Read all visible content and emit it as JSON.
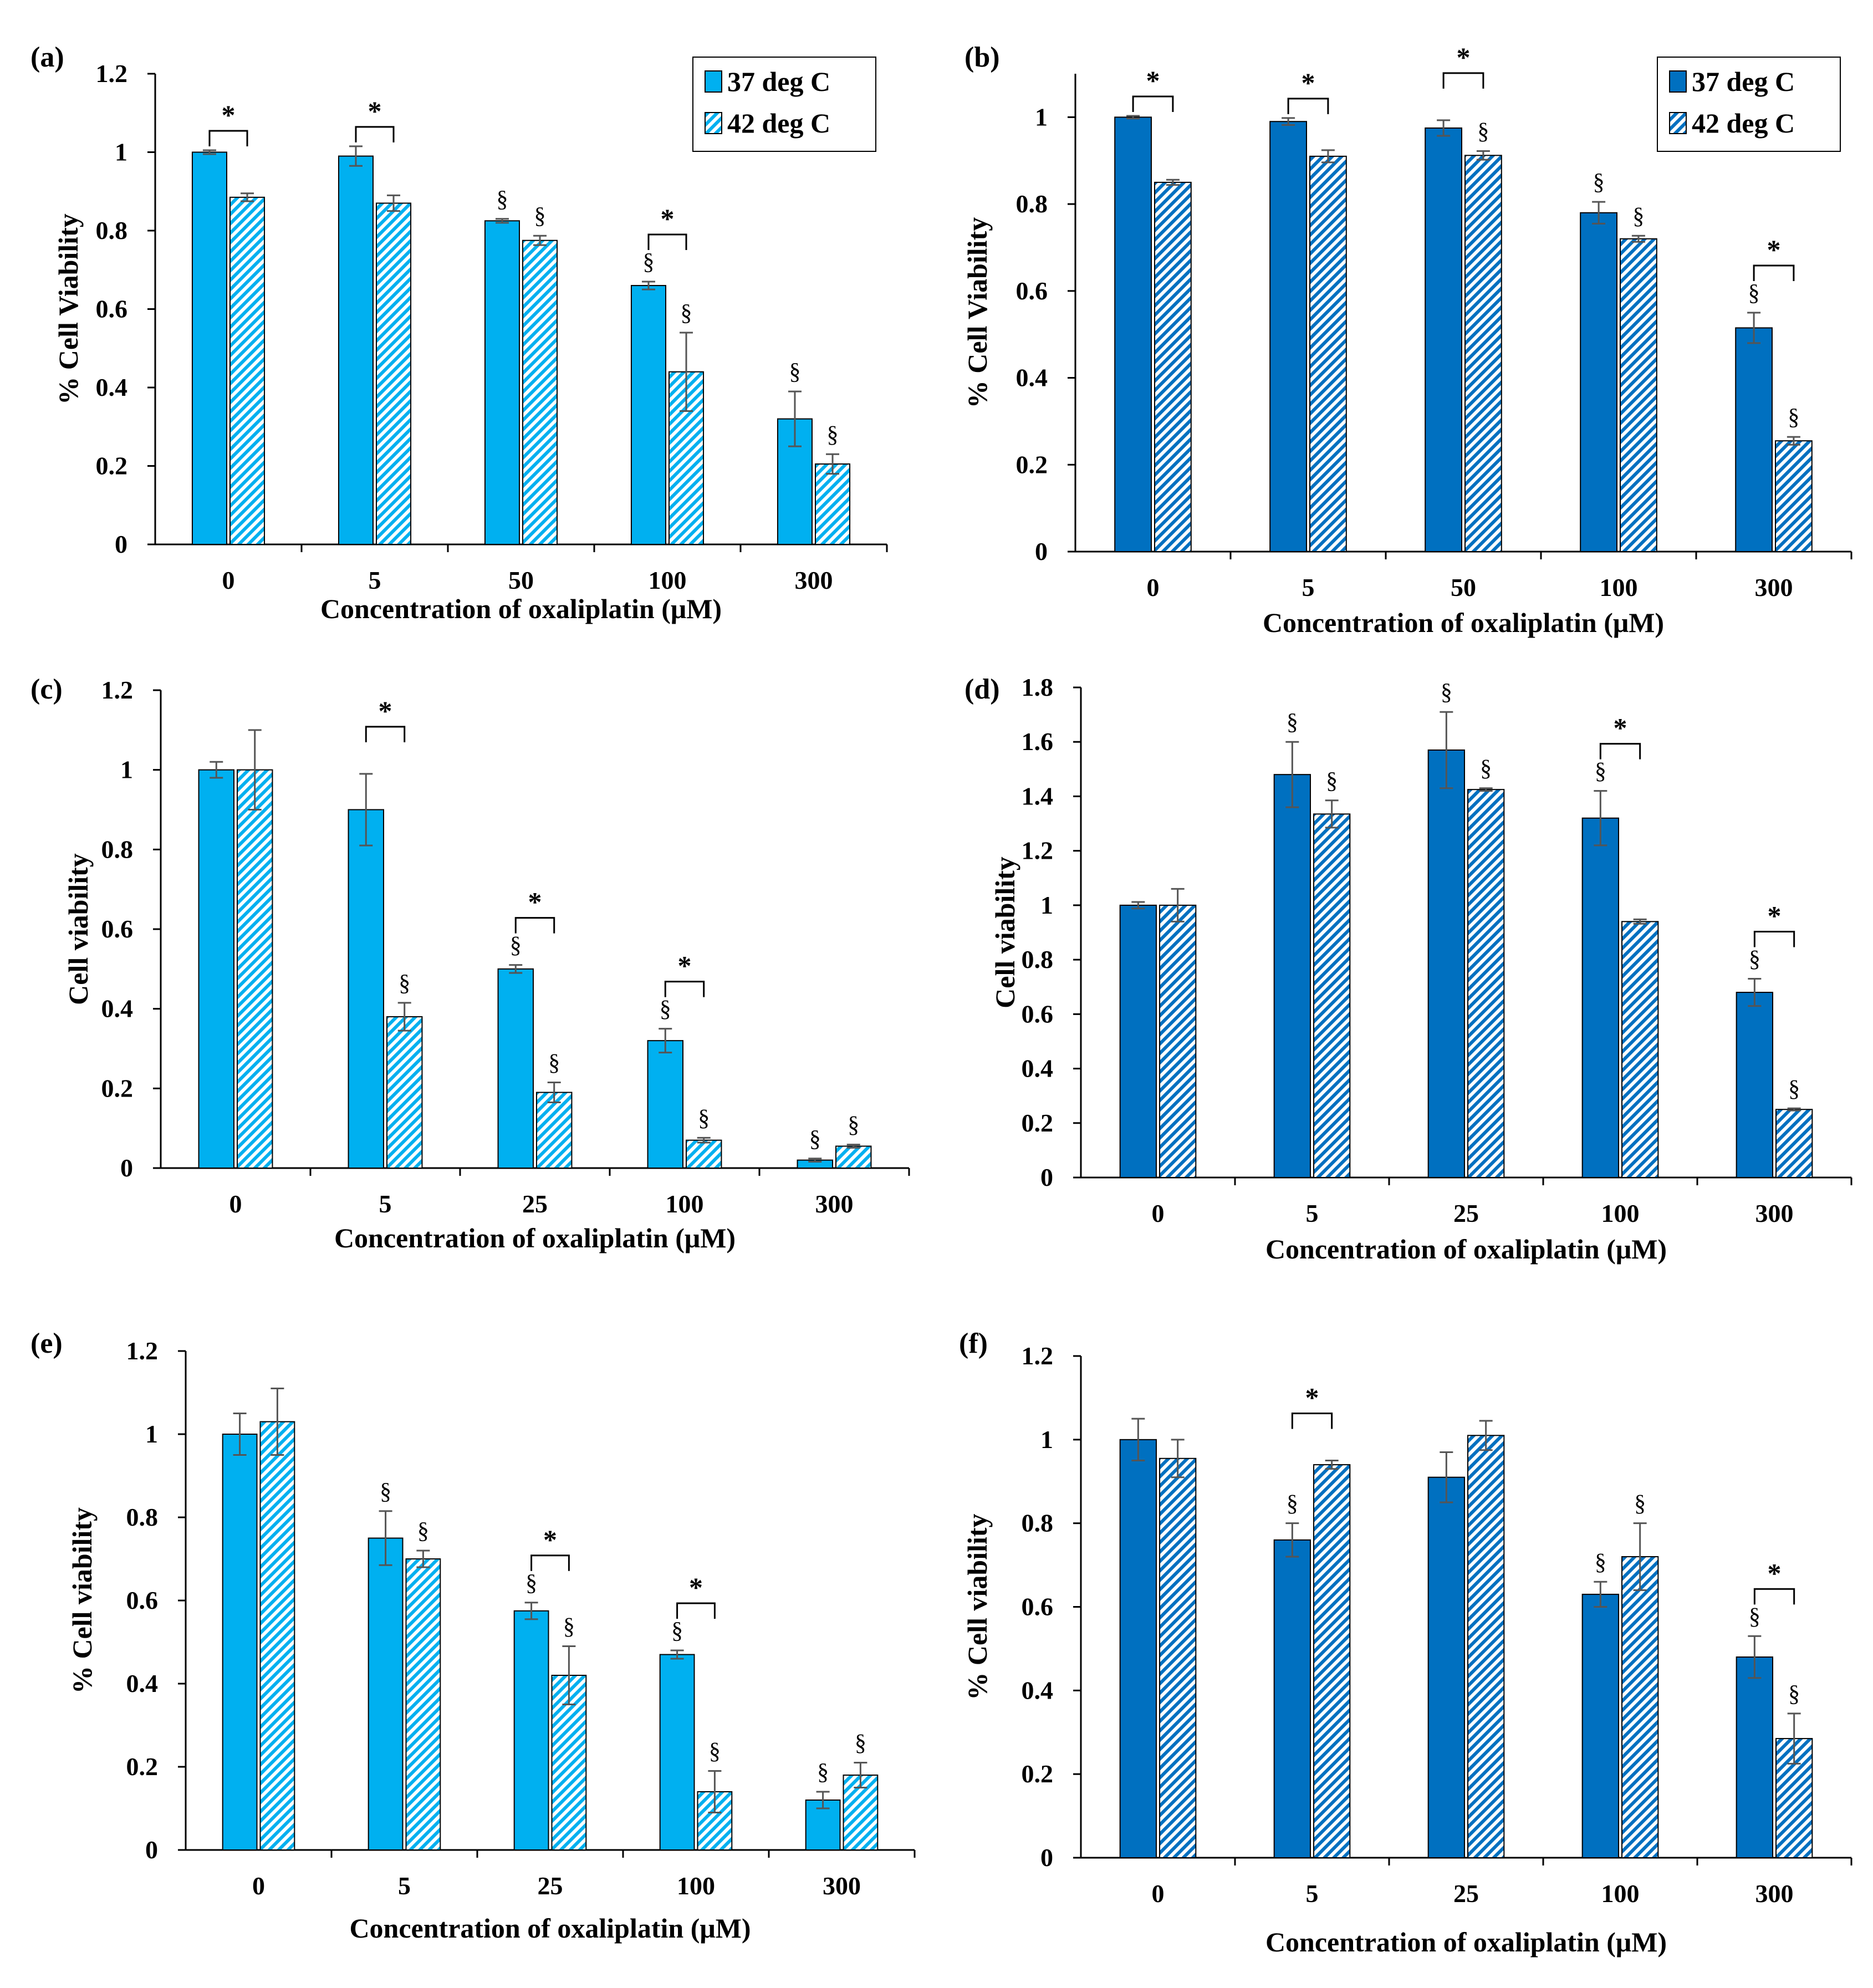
{
  "colors": {
    "light_blue": "#00b0f0",
    "dark_blue": "#0070c0",
    "axis": "#000000",
    "error_bar": "#555555"
  },
  "chart_data": [
    {
      "type": "bar",
      "panel_label": "(a)",
      "xlabel": "Concentration of oxaliplatin (μM)",
      "ylabel": "% Cell Viability",
      "ylim": [
        0,
        1.2
      ],
      "yticks": [
        0,
        0.2,
        0.4,
        0.6,
        0.8,
        1,
        1.2
      ],
      "ytick_labels": [
        "0",
        "0.2",
        "0.4",
        "0.6",
        "0.8",
        "1",
        "1.2"
      ],
      "categories": [
        "0",
        "5",
        "50",
        "100",
        "300"
      ],
      "color": "#00b0f0",
      "legend": {
        "placement": "top-right",
        "entries": [
          "37 deg C",
          "42 deg C"
        ]
      },
      "series": [
        {
          "name": "37 deg C",
          "pattern": "solid",
          "values": [
            1.0,
            0.99,
            0.825,
            0.66,
            0.32
          ],
          "errors": [
            0.005,
            0.025,
            0.005,
            0.01,
            0.07
          ],
          "markers": [
            "",
            "",
            "§",
            "§",
            "§"
          ]
        },
        {
          "name": "42 deg C",
          "pattern": "hatched",
          "values": [
            0.885,
            0.87,
            0.775,
            0.44,
            0.205
          ],
          "errors": [
            0.01,
            0.02,
            0.012,
            0.1,
            0.025
          ],
          "markers": [
            "",
            "",
            "§",
            "§",
            "§"
          ]
        }
      ],
      "significance": [
        {
          "category": "0",
          "label": "*"
        },
        {
          "category": "5",
          "label": "*"
        },
        {
          "category": "100",
          "label": "*"
        }
      ]
    },
    {
      "type": "bar",
      "panel_label": "(b)",
      "xlabel": "Concentration of oxaliplatin (μM)",
      "ylabel": "% Cell Viability",
      "ylim": [
        0,
        1.1
      ],
      "yticks": [
        0,
        0.2,
        0.4,
        0.6,
        0.8,
        1
      ],
      "ytick_labels": [
        "0",
        "0.2",
        "0.4",
        "0.6",
        "0.8",
        "1"
      ],
      "categories": [
        "0",
        "5",
        "50",
        "100",
        "300"
      ],
      "color": "#0070c0",
      "legend": {
        "placement": "top-right",
        "entries": [
          "37 deg C",
          "42 deg C"
        ]
      },
      "series": [
        {
          "name": "37 deg C",
          "pattern": "solid",
          "values": [
            1.0,
            0.99,
            0.975,
            0.78,
            0.515
          ],
          "errors": [
            0.003,
            0.008,
            0.018,
            0.025,
            0.035
          ],
          "markers": [
            "",
            "",
            "",
            "§",
            "§"
          ]
        },
        {
          "name": "42 deg C",
          "pattern": "hatched",
          "values": [
            0.85,
            0.91,
            0.912,
            0.72,
            0.255
          ],
          "errors": [
            0.006,
            0.014,
            0.01,
            0.007,
            0.009
          ],
          "markers": [
            "",
            "",
            "§",
            "§",
            "§"
          ]
        }
      ],
      "significance": [
        {
          "category": "0",
          "label": "*"
        },
        {
          "category": "5",
          "label": "*"
        },
        {
          "category": "50",
          "label": "*"
        },
        {
          "category": "300",
          "label": "*"
        }
      ]
    },
    {
      "type": "bar",
      "panel_label": "(c)",
      "xlabel": "Concentration of oxaliplatin (μM)",
      "ylabel": "Cell viability",
      "ylim": [
        0,
        1.2
      ],
      "yticks": [
        0,
        0.2,
        0.4,
        0.6,
        0.8,
        1,
        1.2
      ],
      "ytick_labels": [
        "0",
        "0.2",
        "0.4",
        "0.6",
        "0.8",
        "1",
        "1.2"
      ],
      "categories": [
        "0",
        "5",
        "25",
        "100",
        "300"
      ],
      "color": "#00b0f0",
      "legend": null,
      "series": [
        {
          "name": "37 deg C",
          "pattern": "solid",
          "values": [
            1.0,
            0.9,
            0.5,
            0.32,
            0.02
          ],
          "errors": [
            0.02,
            0.09,
            0.01,
            0.03,
            0.004
          ],
          "markers": [
            "",
            "",
            "§",
            "§",
            "§"
          ]
        },
        {
          "name": "42 deg C",
          "pattern": "hatched",
          "values": [
            1.0,
            0.38,
            0.19,
            0.07,
            0.055
          ],
          "errors": [
            0.1,
            0.035,
            0.025,
            0.006,
            0.004
          ],
          "markers": [
            "",
            "§",
            "§",
            "§",
            "§"
          ]
        }
      ],
      "significance": [
        {
          "category": "5",
          "label": "*"
        },
        {
          "category": "25",
          "label": "*"
        },
        {
          "category": "100",
          "label": "*"
        }
      ]
    },
    {
      "type": "bar",
      "panel_label": "(d)",
      "xlabel": "Concentration of oxaliplatin (μM)",
      "ylabel": "Cell viability",
      "ylim": [
        0,
        1.8
      ],
      "yticks": [
        0,
        0.2,
        0.4,
        0.6,
        0.8,
        1,
        1.2,
        1.4,
        1.6,
        1.8
      ],
      "ytick_labels": [
        "0",
        "0.2",
        "0.4",
        "0.6",
        "0.8",
        "1",
        "1.2",
        "1.4",
        "1.6",
        "1.8"
      ],
      "categories": [
        "0",
        "5",
        "25",
        "100",
        "300"
      ],
      "color": "#0070c0",
      "legend": null,
      "series": [
        {
          "name": "37 deg C",
          "pattern": "solid",
          "values": [
            1.0,
            1.48,
            1.57,
            1.32,
            0.68
          ],
          "errors": [
            0.012,
            0.12,
            0.14,
            0.1,
            0.05
          ],
          "markers": [
            "",
            "§",
            "§",
            "§",
            "§"
          ]
        },
        {
          "name": "42 deg C",
          "pattern": "hatched",
          "values": [
            1.0,
            1.335,
            1.425,
            0.94,
            0.25
          ],
          "errors": [
            0.06,
            0.05,
            0.005,
            0.008,
            0.004
          ],
          "markers": [
            "",
            "§",
            "§",
            "",
            "§"
          ]
        }
      ],
      "significance": [
        {
          "category": "100",
          "label": "*"
        },
        {
          "category": "300",
          "label": "*"
        }
      ]
    },
    {
      "type": "bar",
      "panel_label": "(e)",
      "xlabel": "Concentration of oxaliplatin (μM)",
      "ylabel": "% Cell viability",
      "ylim": [
        0,
        1.2
      ],
      "yticks": [
        0,
        0.2,
        0.4,
        0.6,
        0.8,
        1,
        1.2
      ],
      "ytick_labels": [
        "0",
        "0.2",
        "0.4",
        "0.6",
        "0.8",
        "1",
        "1.2"
      ],
      "categories": [
        "0",
        "5",
        "25",
        "100",
        "300"
      ],
      "color": "#00b0f0",
      "legend": null,
      "series": [
        {
          "name": "37 deg C",
          "pattern": "solid",
          "values": [
            1.0,
            0.75,
            0.575,
            0.47,
            0.12
          ],
          "errors": [
            0.05,
            0.065,
            0.02,
            0.01,
            0.02
          ],
          "markers": [
            "",
            "§",
            "§",
            "§",
            "§"
          ]
        },
        {
          "name": "42 deg C",
          "pattern": "hatched",
          "values": [
            1.03,
            0.7,
            0.42,
            0.14,
            0.18
          ],
          "errors": [
            0.08,
            0.02,
            0.07,
            0.05,
            0.03
          ],
          "markers": [
            "",
            "§",
            "§",
            "§",
            "§"
          ]
        }
      ],
      "significance": [
        {
          "category": "25",
          "label": "*"
        },
        {
          "category": "100",
          "label": "*"
        }
      ]
    },
    {
      "type": "bar",
      "panel_label": "(f)",
      "xlabel": "Concentration of oxaliplatin (μM)",
      "ylabel": "% Cell viability",
      "ylim": [
        0,
        1.2
      ],
      "yticks": [
        0,
        0.2,
        0.4,
        0.6,
        0.8,
        1,
        1.2
      ],
      "ytick_labels": [
        "0",
        "0.2",
        "0.4",
        "0.6",
        "0.8",
        "1",
        "1.2"
      ],
      "categories": [
        "0",
        "5",
        "25",
        "100",
        "300"
      ],
      "color": "#0070c0",
      "legend": null,
      "series": [
        {
          "name": "37 deg C",
          "pattern": "solid",
          "values": [
            1.0,
            0.76,
            0.91,
            0.63,
            0.48
          ],
          "errors": [
            0.05,
            0.04,
            0.06,
            0.03,
            0.05
          ],
          "markers": [
            "",
            "§",
            "",
            "§",
            "§"
          ]
        },
        {
          "name": "42 deg C",
          "pattern": "hatched",
          "values": [
            0.955,
            0.94,
            1.01,
            0.72,
            0.285
          ],
          "errors": [
            0.045,
            0.01,
            0.035,
            0.08,
            0.06
          ],
          "markers": [
            "",
            "",
            "",
            "§",
            "§"
          ]
        }
      ],
      "significance": [
        {
          "category": "5",
          "label": "*"
        },
        {
          "category": "300",
          "label": "*"
        }
      ]
    }
  ]
}
